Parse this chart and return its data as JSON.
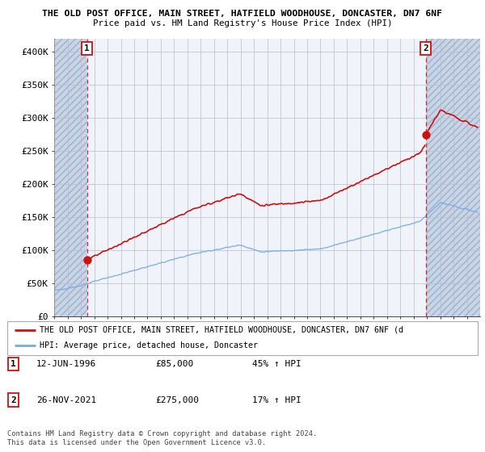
{
  "title1": "THE OLD POST OFFICE, MAIN STREET, HATFIELD WOODHOUSE, DONCASTER, DN7 6NF",
  "title2": "Price paid vs. HM Land Registry's House Price Index (HPI)",
  "ylim": [
    0,
    420000
  ],
  "yticks": [
    0,
    50000,
    100000,
    150000,
    200000,
    250000,
    300000,
    350000,
    400000
  ],
  "ytick_labels": [
    "£0",
    "£50K",
    "£100K",
    "£150K",
    "£200K",
    "£250K",
    "£300K",
    "£350K",
    "£400K"
  ],
  "sale1_t": 1996.45,
  "sale1_price": 85000,
  "sale2_t": 2021.9,
  "sale2_price": 275000,
  "hpi_color": "#7aaadd",
  "price_color": "#cc1111",
  "annotation_box_color": "#cc1111",
  "legend_label1": "THE OLD POST OFFICE, MAIN STREET, HATFIELD WOODHOUSE, DONCASTER, DN7 6NF (d",
  "legend_label2": "HPI: Average price, detached house, Doncaster",
  "table_row1": [
    "1",
    "12-JUN-1996",
    "£85,000",
    "45% ↑ HPI"
  ],
  "table_row2": [
    "2",
    "26-NOV-2021",
    "£275,000",
    "17% ↑ HPI"
  ],
  "footnote": "Contains HM Land Registry data © Crown copyright and database right 2024.\nThis data is licensed under the Open Government Licence v3.0.",
  "xlim_start": 1994.0,
  "xlim_end": 2026.0,
  "hatch_color": "#c8d4e8"
}
